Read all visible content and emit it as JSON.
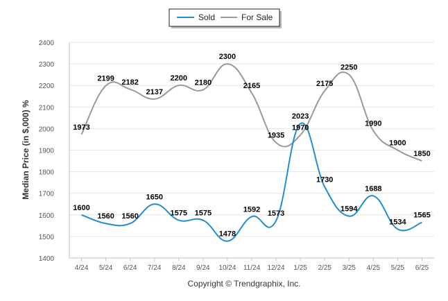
{
  "chart_data": {
    "type": "line",
    "categories": [
      "4/24",
      "5/24",
      "6/24",
      "7/24",
      "8/24",
      "9/24",
      "10/24",
      "11/24",
      "12/24",
      "1/25",
      "2/25",
      "3/25",
      "4/25",
      "5/25",
      "6/25"
    ],
    "series": [
      {
        "name": "Sold",
        "color": "#1f8dd6",
        "values": [
          1600,
          1560,
          1560,
          1650,
          1575,
          1575,
          1478,
          1592,
          1573,
          2023,
          1730,
          1594,
          1688,
          1534,
          1565
        ],
        "labels": [
          "1600",
          "1560",
          "1560",
          "1650",
          "1575",
          "1575",
          "1478",
          "1592",
          "1573",
          "2023",
          "1730",
          "1594",
          "1688",
          "1534",
          "1565"
        ]
      },
      {
        "name": "For Sale",
        "color": "#999999",
        "values": [
          1973,
          2199,
          2182,
          2137,
          2200,
          2180,
          2300,
          2165,
          1935,
          1970,
          2175,
          2250,
          1990,
          1900,
          1850
        ],
        "labels": [
          "1973",
          "2199",
          "2182",
          "2137",
          "2200",
          "2180",
          "2300",
          "2165",
          "1935",
          "1970",
          "2175",
          "2250",
          "1990",
          "1900",
          "1850"
        ]
      }
    ],
    "title": "",
    "xlabel": "",
    "ylabel": "Median Price (in $,000) %",
    "ylim": [
      1400,
      2400
    ],
    "yticks": [
      "1400",
      "1500",
      "1600",
      "1700",
      "1800",
      "1900",
      "2000",
      "2100",
      "2200",
      "2300",
      "2400"
    ],
    "grid": true,
    "legend": "top-center",
    "copyright": "Copyright © Trendgraphix, Inc."
  }
}
